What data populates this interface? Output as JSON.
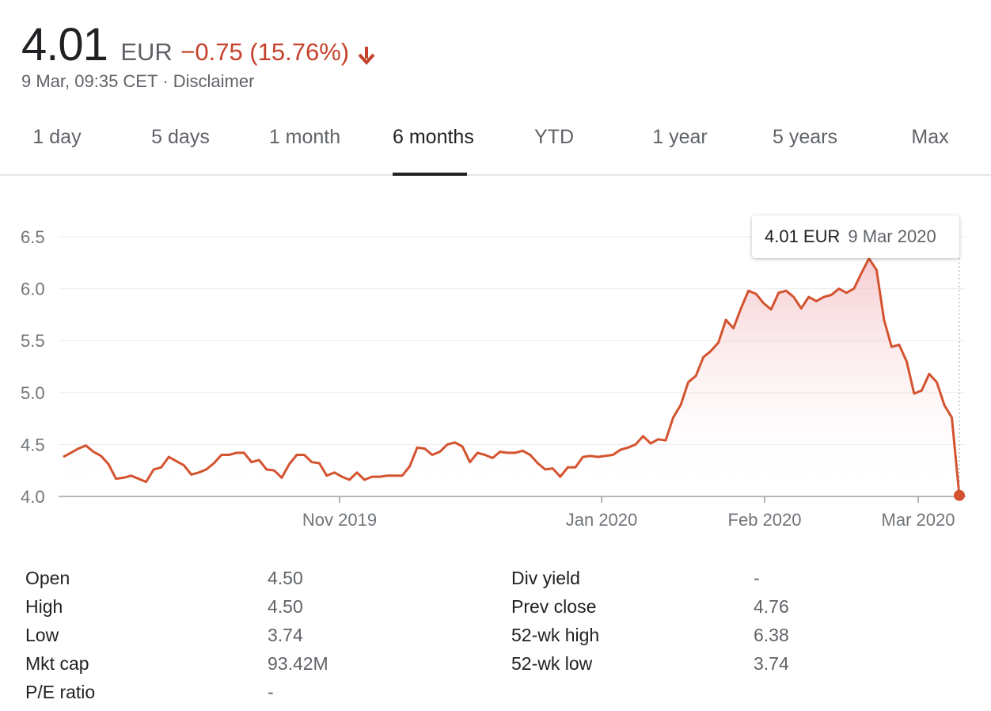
{
  "quote": {
    "price": "4.01",
    "currency": "EUR",
    "change": "−0.75 (15.76%)",
    "timestamp": "9 Mar, 09:35 CET",
    "separator": "·",
    "disclaimer": "Disclaimer",
    "change_color": "#c5432c",
    "direction": "down",
    "direction_icon": "arrow-down-icon"
  },
  "tabs": [
    {
      "label": "1 day",
      "active": false
    },
    {
      "label": "5 days",
      "active": false
    },
    {
      "label": "1 month",
      "active": false
    },
    {
      "label": "6 months",
      "active": true
    },
    {
      "label": "YTD",
      "active": false
    },
    {
      "label": "1 year",
      "active": false
    },
    {
      "label": "5 years",
      "active": false
    },
    {
      "label": "Max",
      "active": false
    }
  ],
  "tooltip": {
    "price": "4.01 EUR",
    "date": "9 Mar 2020"
  },
  "chart_data": {
    "type": "area",
    "title": "",
    "xlabel": "",
    "ylabel": "",
    "x_tick_labels": [
      "Nov 2019",
      "Jan 2020",
      "Feb 2020",
      "Mar 2020"
    ],
    "y_ticks": [
      "4.0",
      "4.5",
      "5.0",
      "5.5",
      "6.0",
      "6.5"
    ],
    "ylim": [
      4.0,
      6.5
    ],
    "grid": true,
    "line_color": "#d4532f",
    "fill_color": "#f3c6c9",
    "series": [
      {
        "values": [
          4.38,
          4.42,
          4.46,
          4.49,
          4.43,
          4.39,
          4.31,
          4.17,
          4.18,
          4.2,
          4.17,
          4.14,
          4.26,
          4.28,
          4.38,
          4.34,
          4.3,
          4.21,
          4.23,
          4.26,
          4.32,
          4.4,
          4.4,
          4.42,
          4.42,
          4.33,
          4.35,
          4.26,
          4.25,
          4.18,
          4.31,
          4.4,
          4.4,
          4.33,
          4.32,
          4.2,
          4.23,
          4.19,
          4.16,
          4.23,
          4.16,
          4.19,
          4.19,
          4.2,
          4.2,
          4.2,
          4.29,
          4.47,
          4.46,
          4.4,
          4.43,
          4.5,
          4.52,
          4.48,
          4.33,
          4.42,
          4.4,
          4.37,
          4.43,
          4.42,
          4.42,
          4.44,
          4.4,
          4.32,
          4.26,
          4.27,
          4.19,
          4.28,
          4.28,
          4.38,
          4.39,
          4.38,
          4.39,
          4.4,
          4.45,
          4.47,
          4.5,
          4.58,
          4.51,
          4.55,
          4.54,
          4.76,
          4.88,
          5.1,
          5.16,
          5.34,
          5.4,
          5.48,
          5.7,
          5.62,
          5.81,
          5.98,
          5.95,
          5.86,
          5.8,
          5.96,
          5.98,
          5.92,
          5.81,
          5.92,
          5.88,
          5.92,
          5.94,
          6.0,
          5.96,
          6.0,
          6.15,
          6.29,
          6.18,
          5.7,
          5.44,
          5.46,
          5.3,
          4.99,
          5.02,
          5.18,
          5.1,
          4.88,
          4.76,
          4.01
        ]
      }
    ],
    "last_point": {
      "value": 4.01,
      "date": "9 Mar 2020"
    }
  },
  "stats": {
    "left": [
      {
        "label": "Open",
        "value": "4.50"
      },
      {
        "label": "High",
        "value": "4.50"
      },
      {
        "label": "Low",
        "value": "3.74"
      },
      {
        "label": "Mkt cap",
        "value": "93.42M"
      },
      {
        "label": "P/E ratio",
        "value": "-"
      }
    ],
    "right": [
      {
        "label": "Div yield",
        "value": "-"
      },
      {
        "label": "Prev close",
        "value": "4.76"
      },
      {
        "label": "52-wk high",
        "value": "6.38"
      },
      {
        "label": "52-wk low",
        "value": "3.74"
      }
    ]
  }
}
